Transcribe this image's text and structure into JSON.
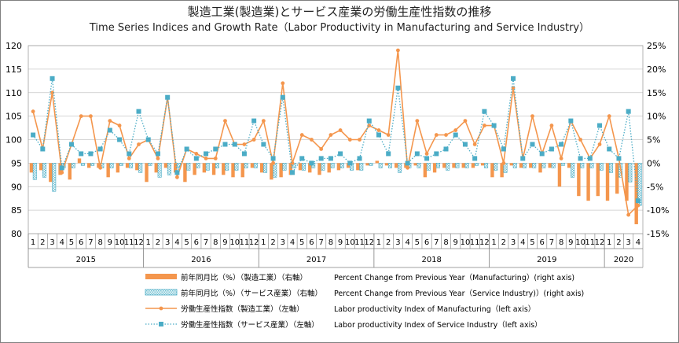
{
  "title": "製造工業(製造業)とサービス産業の労働生産性指数の推移",
  "subtitle": "Time Series Indices and Growth Rate（Labor Productivity in Manufacturing and Service Industry）",
  "chart_data": {
    "type": "bar+line",
    "categories": [
      "1",
      "2",
      "3",
      "4",
      "5",
      "6",
      "7",
      "8",
      "9",
      "10",
      "11",
      "12",
      "1",
      "2",
      "3",
      "4",
      "5",
      "6",
      "7",
      "8",
      "9",
      "10",
      "11",
      "12",
      "1",
      "2",
      "3",
      "4",
      "5",
      "6",
      "7",
      "8",
      "9",
      "10",
      "11",
      "12",
      "1",
      "2",
      "3",
      "4",
      "5",
      "6",
      "7",
      "8",
      "9",
      "10",
      "11",
      "12",
      "1",
      "2",
      "3",
      "4",
      "5",
      "6",
      "7",
      "8",
      "9",
      "10",
      "11",
      "12",
      "1",
      "2",
      "3",
      "4"
    ],
    "year_labels": [
      {
        "label": "2015",
        "start": 0,
        "end": 11
      },
      {
        "label": "2016",
        "start": 12,
        "end": 23
      },
      {
        "label": "2017",
        "start": 24,
        "end": 35
      },
      {
        "label": "2018",
        "start": 36,
        "end": 47
      },
      {
        "label": "2019",
        "start": 48,
        "end": 59
      },
      {
        "label": "2020",
        "start": 60,
        "end": 63
      }
    ],
    "y_left": {
      "min": 80,
      "max": 120,
      "step": 5,
      "ticks": [
        "80",
        "85",
        "90",
        "95",
        "100",
        "105",
        "110",
        "115",
        "120"
      ]
    },
    "y_right": {
      "min": -15,
      "max": 25,
      "step": 5,
      "ticks": [
        "-15%",
        "-10%",
        "-5%",
        "0%",
        "5%",
        "10%",
        "15%",
        "20%",
        "25%"
      ]
    },
    "series": [
      {
        "name": "前年同月比（%）（製造工業）（右軸）",
        "name_en": "Percent Change from Previous Year（Manufacturing）(right axis)",
        "type": "bar",
        "axis": "right",
        "color": "#f4964d",
        "values": [
          -2,
          -1.5,
          -4,
          -2.5,
          -3.5,
          1,
          -1,
          -1,
          -3,
          -2,
          -1,
          -1.5,
          -4,
          -2,
          -1,
          -2,
          -4,
          -2.5,
          -2,
          -2.5,
          -2.5,
          -3,
          -3,
          -1,
          -2,
          -3.5,
          -3,
          -2.5,
          -1.5,
          -2,
          -2.5,
          -2,
          -1.5,
          -1,
          -1.5,
          -0.5,
          0.5,
          -0.5,
          -1,
          -1,
          -0.5,
          -3,
          -2,
          -1,
          -1,
          -1,
          -1,
          -0.5,
          -3,
          -3,
          -0.5,
          -1,
          -1,
          -2,
          -1,
          -5,
          -1,
          -7,
          -8,
          -7,
          -8,
          -6.5,
          -8,
          -13
        ]
      },
      {
        "name": "前年同月比（%）（サービス産業）（右軸）",
        "name_en": "Percent Change from Previous Year（Service Industry)）(right axis)",
        "type": "bar",
        "axis": "right",
        "color": "#9fd3de",
        "values": [
          -3.5,
          -3,
          -6,
          -1,
          -1,
          -0.5,
          -0.5,
          -1,
          -1,
          -0.5,
          -1,
          -2,
          -0.5,
          -3,
          -2.5,
          -1,
          -1.5,
          -1,
          -1.5,
          -1,
          -1.5,
          -1.5,
          -1,
          -1,
          -2,
          -3,
          -1.5,
          -1,
          -1.5,
          -1,
          -1.5,
          -1,
          -1,
          -1.5,
          -1.5,
          -0.5,
          -1,
          -1,
          -2,
          -1,
          -1,
          -1.5,
          -1,
          -1.5,
          -1,
          -1,
          -0.5,
          -1,
          -1.5,
          -2,
          -1,
          -1,
          -1,
          -1,
          -1,
          -0.5,
          -3,
          -1,
          -1,
          -1.5,
          -2,
          -3,
          -4,
          -9
        ]
      },
      {
        "name": "労働生産性指数（製造工業）（左軸）",
        "name_en": "Labor productivity Index of Manufacturing（left axis）",
        "type": "line",
        "axis": "left",
        "color": "#f4964d",
        "values": [
          106,
          98,
          110,
          93,
          99,
          105,
          105,
          94,
          104,
          103,
          96,
          99,
          100,
          96,
          109,
          92,
          98,
          97,
          96,
          96,
          104,
          99,
          99,
          100,
          104,
          95,
          112,
          95,
          101,
          100,
          98,
          101,
          102,
          100,
          100,
          103,
          102,
          101,
          119,
          94,
          104,
          97,
          101,
          101,
          102,
          104,
          99,
          103,
          103,
          95,
          111,
          96,
          105,
          97,
          103,
          96,
          104,
          100,
          96,
          99,
          105,
          96,
          84,
          86
        ]
      },
      {
        "name": "労働生産性指数（サービス産業）（左軸）",
        "name_en": "Labor productivity Index of Service Industry（left axis）",
        "type": "line",
        "axis": "left",
        "color": "#4bacc6",
        "values": [
          101,
          98,
          113,
          94,
          99,
          97,
          97,
          98,
          102,
          100,
          97,
          106,
          100,
          97,
          109,
          93,
          98,
          96,
          97,
          98,
          99,
          99,
          97,
          104,
          99,
          96,
          109,
          93,
          96,
          95,
          96,
          96,
          97,
          95,
          96,
          104,
          101,
          97,
          111,
          95,
          97,
          96,
          97,
          98,
          101,
          99,
          96,
          106,
          103,
          98,
          113,
          96,
          99,
          97,
          98,
          99,
          104,
          96,
          96,
          103,
          98,
          96,
          106,
          87
        ]
      }
    ],
    "legend": [
      {
        "jp": "前年同月比（%）（製造工業）（右軸）",
        "en": "Percent Change from Previous Year（Manufacturing）(right axis)",
        "marker": "bar-solid"
      },
      {
        "jp": "前年同月比（%）（サービス産業）（右軸）",
        "en": "Percent Change from Previous Year（Service Industry)）(right axis)",
        "marker": "bar-hatched"
      },
      {
        "jp": "労働生産性指数（製造工業）（左軸）",
        "en": "Labor productivity Index of Manufacturing（left axis）",
        "marker": "line-solid"
      },
      {
        "jp": "労働生産性指数（サービス産業）（左軸）",
        "en": "Labor productivity Index of Service Industry（left axis）",
        "marker": "line-dotted"
      }
    ],
    "legend_position": "bottom",
    "grid": true
  }
}
